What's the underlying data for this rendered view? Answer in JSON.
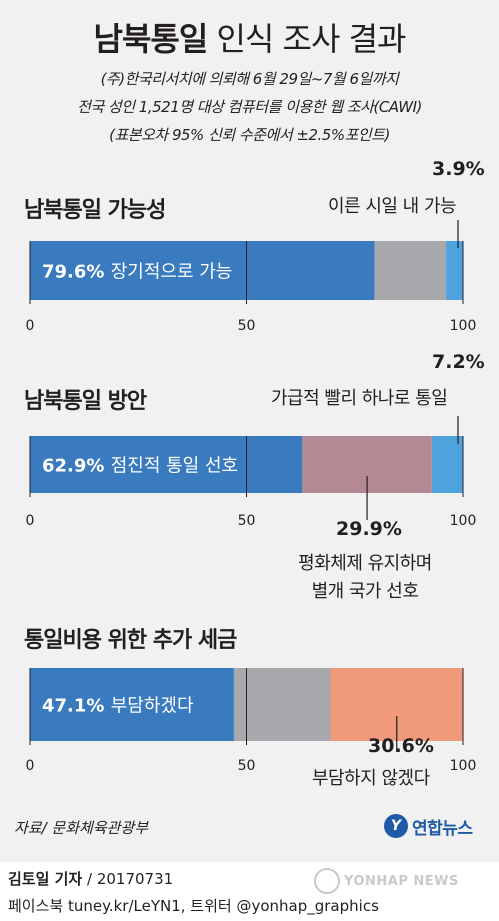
{
  "header": {
    "title_bold": "남북통일",
    "title_rest": "인식 조사 결과",
    "sub1": "(주)한국리서치에 의뢰해 6월 29일~7월 6일까지",
    "sub2": "전국 성인 1,521명 대상 컴퓨터를 이용한 웹 조사(CAWI)",
    "sub3": "(표본오차 95% 신뢰 수준에서 ±2.5%포인트)"
  },
  "chart_data": [
    {
      "type": "bar",
      "stacked": true,
      "orientation": "horizontal",
      "title": "남북통일 가능성",
      "xlim": [
        0,
        100
      ],
      "ticks": [
        "0",
        "50",
        "100"
      ],
      "segments": [
        {
          "value": 79.6,
          "value_label": "79.6%",
          "label": "장기적으로 가능",
          "color": "#3a7bbf"
        },
        {
          "value": 16.5,
          "value_label": "",
          "label": "",
          "color": "#a7a9ac"
        },
        {
          "value": 3.9,
          "value_label": "3.9%",
          "label": "이른 시일 내 가능",
          "color": "#4ea3dd"
        }
      ]
    },
    {
      "type": "bar",
      "stacked": true,
      "orientation": "horizontal",
      "title": "남북통일 방안",
      "xlim": [
        0,
        100
      ],
      "ticks": [
        "0",
        "50",
        "100"
      ],
      "segments": [
        {
          "value": 62.9,
          "value_label": "62.9%",
          "label": "점진적 통일 선호",
          "color": "#3a7bbf"
        },
        {
          "value": 29.9,
          "value_label": "29.9%",
          "label": "평화체제 유지하며\n별개 국가 선호",
          "color": "#b38a93"
        },
        {
          "value": 7.2,
          "value_label": "7.2%",
          "label": "가급적 빨리 하나로 통일",
          "color": "#4ea3dd"
        }
      ]
    },
    {
      "type": "bar",
      "stacked": true,
      "orientation": "horizontal",
      "title": "통일비용 위한 추가 세금",
      "xlim": [
        0,
        100
      ],
      "ticks": [
        "0",
        "50",
        "100"
      ],
      "segments": [
        {
          "value": 47.1,
          "value_label": "47.1%",
          "label": "부담하겠다",
          "color": "#3a7bbf"
        },
        {
          "value": 22.3,
          "value_label": "",
          "label": "",
          "color": "#a7a9ac"
        },
        {
          "value": 30.6,
          "value_label": "30.6%",
          "label": "부담하지 않겠다",
          "color": "#f0997b"
        }
      ]
    }
  ],
  "callouts": {
    "c1_val": "3.9%",
    "c1_txt": "이른 시일 내 가능",
    "c2_val": "7.2%",
    "c2_txt": "가급적 빨리 하나로 통일",
    "c3_val": "29.9%",
    "c3_txt1": "평화체제 유지하며",
    "c3_txt2": "별개 국가 선호",
    "c4_val": "30.6%",
    "c4_txt": "부담하지 않겠다"
  },
  "footer": {
    "source": "자료/ 문화체육관광부",
    "logo_mark": "Y",
    "logo_text": "연합뉴스",
    "reporter": "김토일 기자",
    "date": "/ 20170731",
    "social": "페이스북 tuney.kr/LeYN1, 트위터 @yonhap_graphics",
    "watermark": "YONHAP NEWS"
  }
}
